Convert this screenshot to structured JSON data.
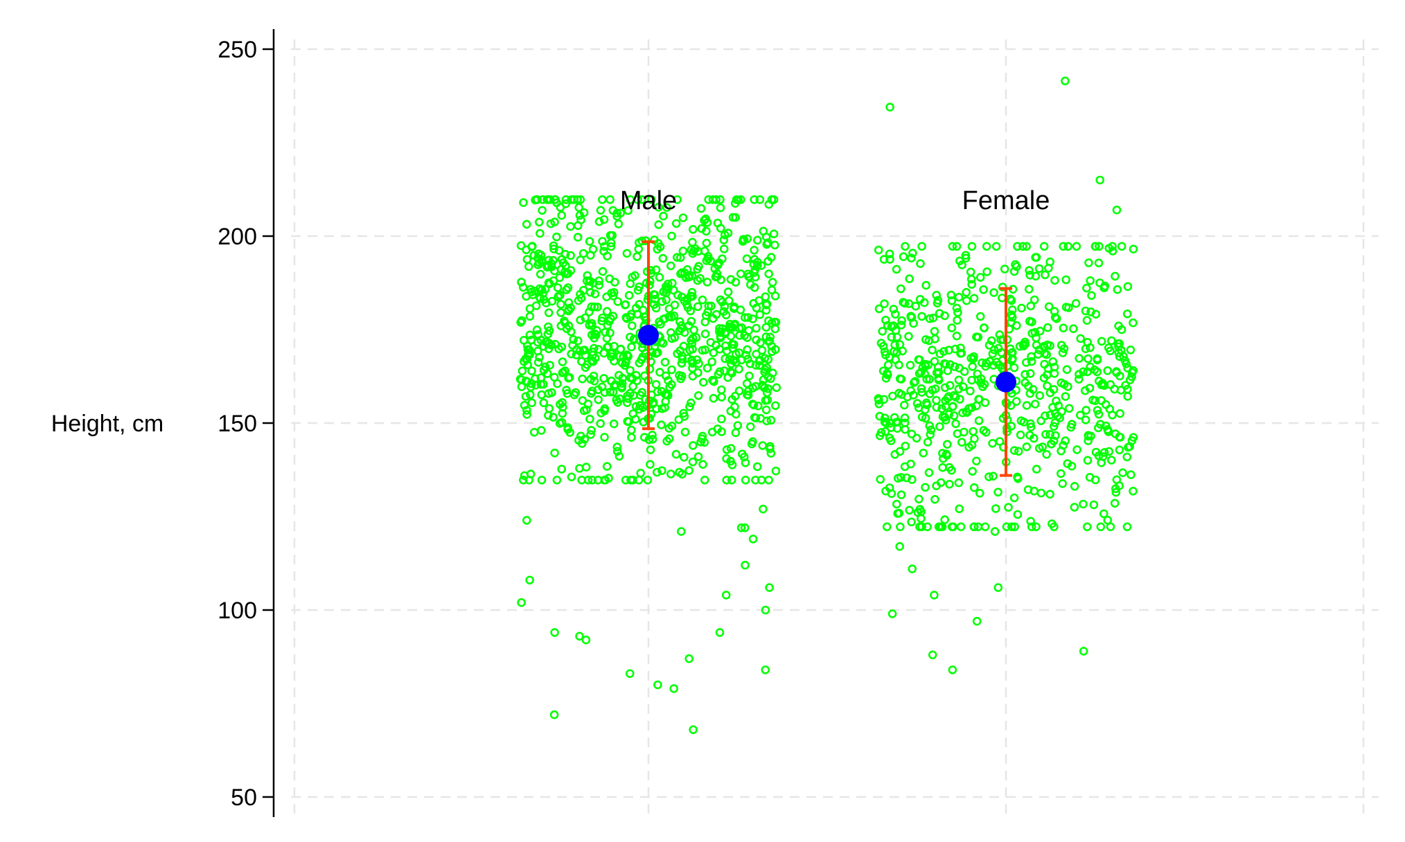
{
  "chart_data": {
    "type": "scatter",
    "title": "",
    "ylabel": "Height, cm",
    "xlabel": "",
    "ylim": [
      50,
      255
    ],
    "yticks": [
      50,
      100,
      150,
      200,
      250
    ],
    "grid": true,
    "legend": "none",
    "colors": {
      "points": "#00ff00",
      "mean": "#0000ff",
      "errorbar": "#ff4500",
      "grid": "#e6e6e6",
      "axis": "#000000"
    },
    "groups": [
      {
        "label": "Male",
        "mean": 173.5,
        "sd_low": 148.5,
        "sd_high": 198.5,
        "outliers": [
          122,
          119,
          106,
          102,
          93,
          87,
          79,
          112,
          124,
          121,
          100,
          104,
          127,
          122,
          108,
          92,
          80,
          72,
          68,
          94,
          83,
          84,
          94
        ]
      },
      {
        "label": "Female",
        "mean": 161,
        "sd_low": 136,
        "sd_high": 186,
        "outliers": [
          241.5,
          234.5,
          121,
          106,
          97,
          88,
          84,
          104,
          117,
          111,
          89,
          99,
          215,
          207
        ]
      }
    ]
  }
}
